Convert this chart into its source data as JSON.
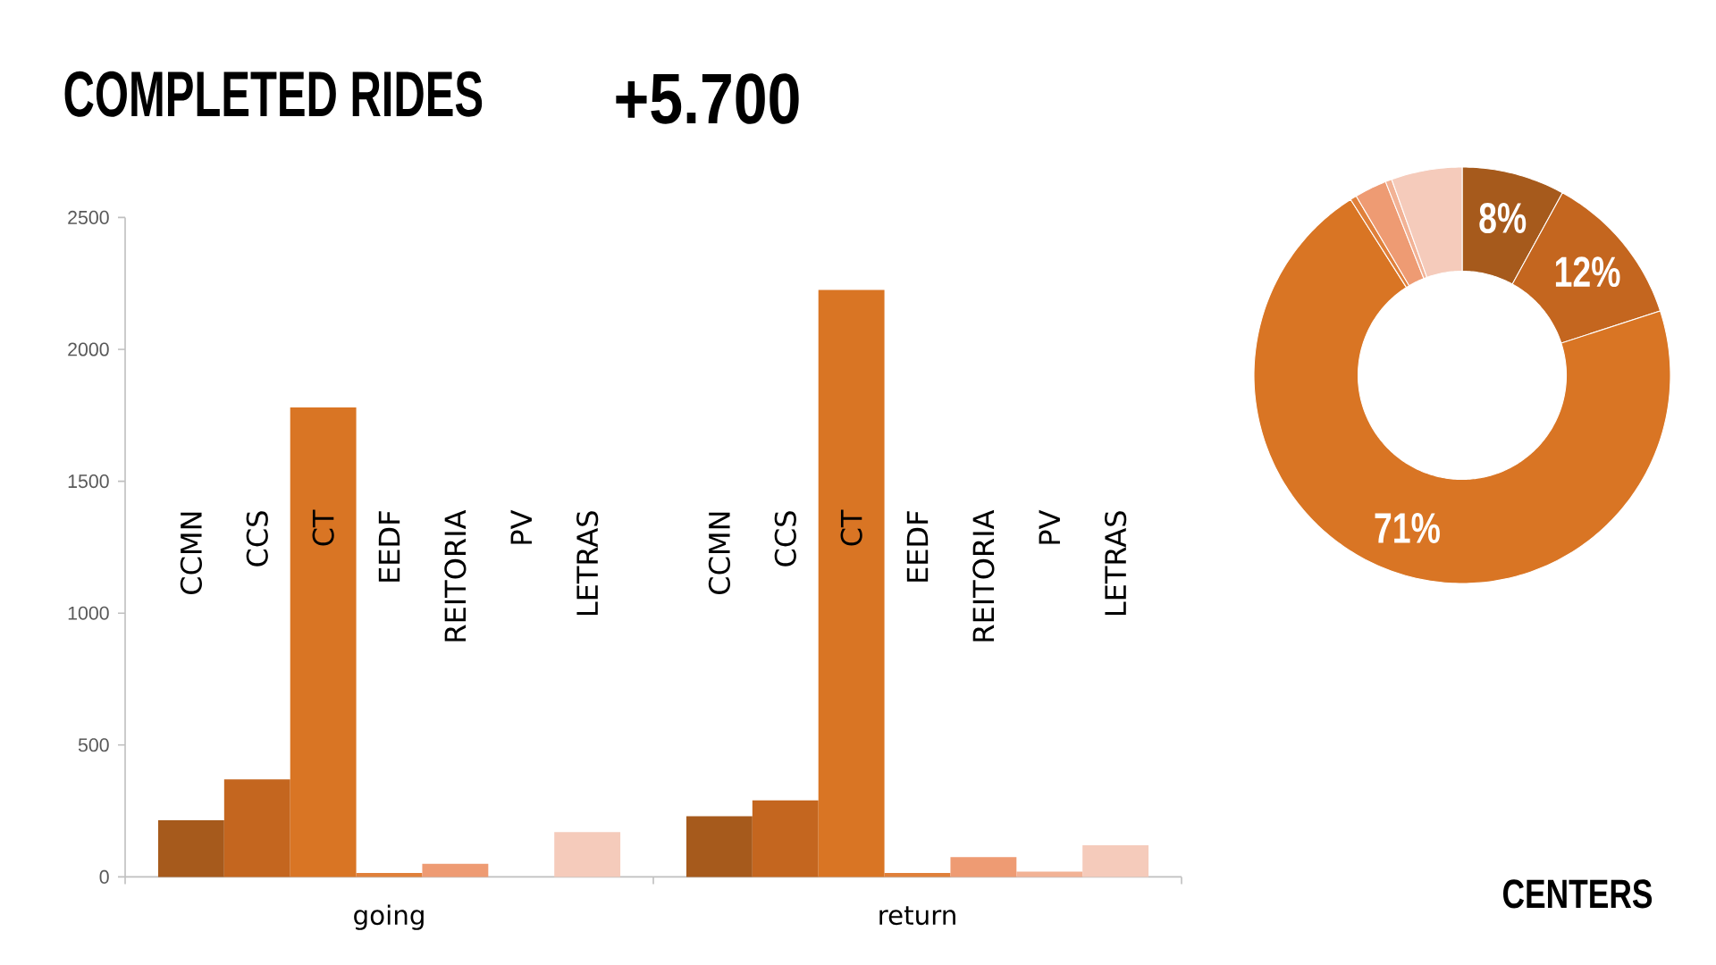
{
  "chart_data": [
    {
      "type": "bar",
      "title": "COMPLETED RIDES",
      "subtitle": "+5.700",
      "categories": [
        "CCMN",
        "CCS",
        "CT",
        "EEDF",
        "REITORIA",
        "PV",
        "LETRAS",
        "CCMN",
        "CCS",
        "CT",
        "EEDF",
        "REITORIA",
        "PV",
        "LETRAS"
      ],
      "values": [
        215,
        370,
        1780,
        15,
        50,
        0,
        170,
        230,
        290,
        2225,
        15,
        75,
        20,
        120
      ],
      "colors": [
        "#a65a1c",
        "#c4661f",
        "#d97524",
        "#e0803a",
        "#ee9b73",
        "#f2b295",
        "#f5cbbb",
        "#a65a1c",
        "#c4661f",
        "#d97524",
        "#e0803a",
        "#ee9b73",
        "#f2b295",
        "#f5cbbb"
      ],
      "ylim": [
        0,
        2500
      ],
      "yticks": [
        0,
        500,
        1000,
        1500,
        2000,
        2500
      ],
      "annotations": [
        "going",
        "return"
      ]
    },
    {
      "type": "donut",
      "categories": [
        null,
        null,
        null,
        null,
        null,
        null,
        null
      ],
      "values": [
        8,
        12,
        71,
        0.5,
        2.5,
        0.5,
        5.5
      ],
      "colors": [
        "#a65a1c",
        "#c4661f",
        "#d97524",
        "#e0803a",
        "#ee9b73",
        "#f2b295",
        "#f5cbbb"
      ],
      "value_labels": [
        "8%",
        "12%",
        "71%",
        null,
        null,
        null,
        null
      ],
      "annotations": [
        "CENTERS"
      ]
    }
  ]
}
